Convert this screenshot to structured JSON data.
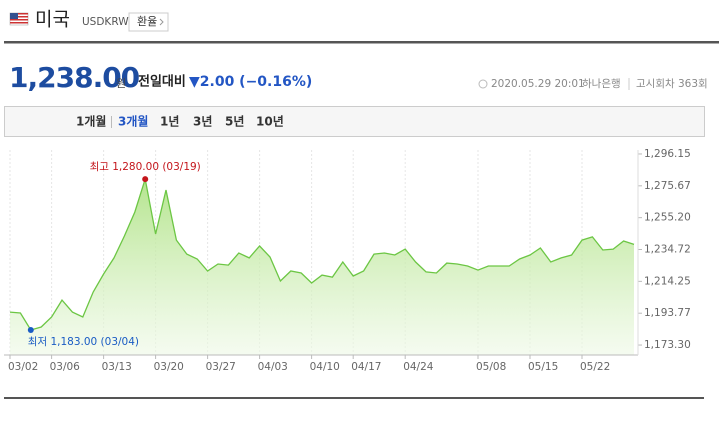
{
  "header": {
    "country": "미국",
    "code": "USDKRW",
    "button": "환율",
    "price": "1,238.00",
    "unit": "원",
    "change_label": "전일대비",
    "change": "▼2.00 (−0.16%)",
    "datetime": "2020.05.29 20:01",
    "bank": "하나은행",
    "round": "고시회차 363회"
  },
  "tabs": [
    "1개월",
    "3개월",
    "1년",
    "3년",
    "5년",
    "10년"
  ],
  "selected_tab": "3개월",
  "chart_data": {
    "type": "line",
    "color": "#6cc644",
    "categories": [
      "03/02",
      null,
      null,
      null,
      "03/06",
      null,
      null,
      null,
      null,
      "03/13",
      null,
      null,
      null,
      null,
      "03/20",
      null,
      null,
      null,
      null,
      "03/27",
      null,
      null,
      null,
      null,
      "04/03",
      null,
      null,
      null,
      null,
      "04/10",
      null,
      null,
      null,
      "04/17",
      null,
      null,
      null,
      null,
      "04/24",
      null,
      null,
      null,
      null,
      null,
      null,
      "05/08",
      null,
      null,
      null,
      null,
      "05/15",
      null,
      null,
      null,
      null,
      "05/22",
      null,
      null,
      null,
      null,
      null
    ],
    "values": [
      1194.5,
      1193.9,
      1183.0,
      1184.9,
      1191.3,
      1202.2,
      1194.5,
      1191.3,
      1207.4,
      1219.0,
      1229.3,
      1243.4,
      1258.8,
      1280.0,
      1244.7,
      1273.0,
      1240.8,
      1231.8,
      1228.6,
      1220.9,
      1225.4,
      1224.7,
      1232.5,
      1229.3,
      1237.0,
      1229.9,
      1214.5,
      1220.9,
      1219.6,
      1213.2,
      1218.3,
      1217.0,
      1226.7,
      1217.7,
      1220.9,
      1231.8,
      1232.5,
      1231.2,
      1235.0,
      1226.7,
      1220.3,
      1219.6,
      1226.0,
      1225.4,
      1224.1,
      1221.5,
      1224.1,
      1224.1,
      1224.1,
      1228.6,
      1231.2,
      1235.7,
      1226.7,
      1229.3,
      1231.2,
      1240.8,
      1242.8,
      1234.4,
      1235.0,
      1240.2,
      1238.0
    ],
    "ylim": [
      1166.9,
      1298.7
    ],
    "yticks": [
      {
        "value": 1296.15,
        "label": "1,296.15"
      },
      {
        "value": 1275.67,
        "label": "1,275.67"
      },
      {
        "value": 1255.2,
        "label": "1,255.20"
      },
      {
        "value": 1234.72,
        "label": "1,234.72"
      },
      {
        "value": 1214.25,
        "label": "1,214.25"
      },
      {
        "value": 1193.77,
        "label": "1,193.77"
      },
      {
        "value": 1173.3,
        "label": "1,173.30"
      }
    ],
    "annotations": [
      {
        "text": "최고 1,280.00 (03/19)",
        "value": 1280.0,
        "color": "#c4161c"
      },
      {
        "text": "최저 1,183.00 (03/04)",
        "value": 1183.0,
        "color": "#1a5cc4"
      }
    ]
  }
}
